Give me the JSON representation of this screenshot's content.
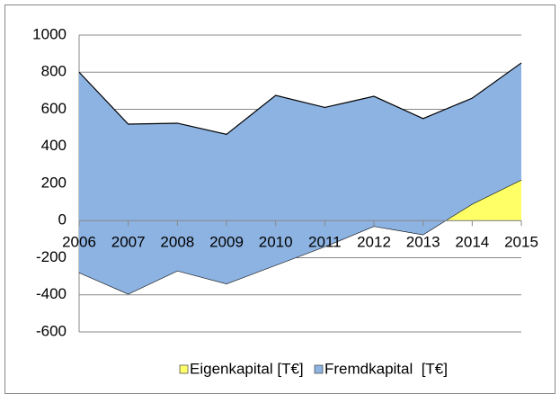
{
  "chart_data": {
    "type": "stacked_area",
    "categories": [
      "2006",
      "2007",
      "2008",
      "2009",
      "2010",
      "2011",
      "2012",
      "2013",
      "2014",
      "2015"
    ],
    "series": [
      {
        "name": "Eigenkapital [T€]",
        "color": "#ffff66",
        "values": [
          -280,
          -395,
          -270,
          -340,
          -240,
          -140,
          -30,
          -75,
          90,
          220
        ]
      },
      {
        "name": "Fremdkapital  [T€]",
        "color": "#8db3e2",
        "values": [
          1080,
          915,
          795,
          805,
          915,
          750,
          700,
          625,
          570,
          630
        ]
      }
    ],
    "ylim": [
      -600,
      1000
    ],
    "yticks": [
      -600,
      -400,
      -200,
      0,
      200,
      400,
      600,
      800,
      1000
    ],
    "grid": true,
    "legend": "bottom"
  }
}
